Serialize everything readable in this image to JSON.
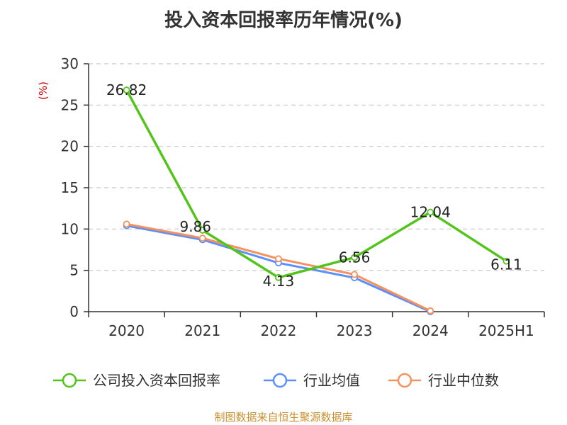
{
  "chart_data": {
    "type": "line",
    "title": "投入资本回报率历年情况(%)",
    "ylabel": "(%)",
    "categories": [
      "2020",
      "2021",
      "2022",
      "2023",
      "2024",
      "2025H1"
    ],
    "ylim": [
      0,
      30
    ],
    "yticks": [
      0,
      5,
      10,
      15,
      20,
      25,
      30
    ],
    "grid": true,
    "legend_position": "bottom",
    "series": [
      {
        "name": "公司投入资本回报率",
        "color": "#52c41a",
        "values": [
          26.82,
          9.86,
          4.13,
          6.56,
          12.04,
          6.11
        ],
        "labels": [
          "26.82",
          "9.86",
          "4.13",
          "6.56",
          "12.04",
          "6.11"
        ]
      },
      {
        "name": "行业均值",
        "color": "#5b8ff9",
        "values": [
          10.4,
          8.7,
          5.9,
          4.1,
          0.0,
          null
        ]
      },
      {
        "name": "行业中位数",
        "color": "#f4915e",
        "values": [
          10.6,
          8.9,
          6.4,
          4.5,
          0.1,
          null
        ]
      }
    ],
    "source": "制图数据来自恒生聚源数据库"
  }
}
